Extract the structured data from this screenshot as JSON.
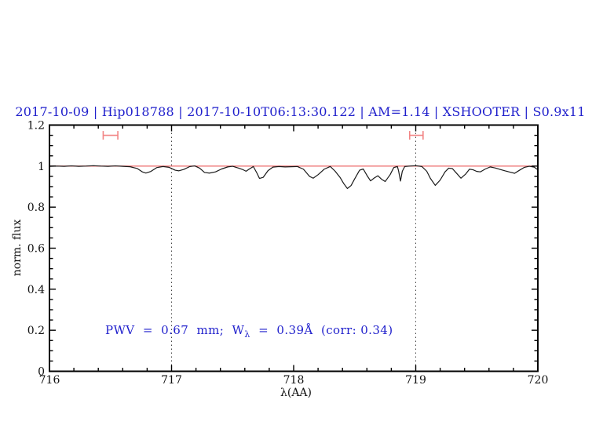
{
  "title": {
    "text": "2017-10-09 | Hip018788 | 2017-10-10T06:13:30.122 | AM=1.14 | XSHOOTER | S0.9x11",
    "color": "#1f1fcc"
  },
  "annotation": {
    "prefix": "PWV  =  0.67  mm;  W",
    "sub": "λ",
    "suffix": "  =  0.39Å  (corr: 0.34)",
    "color": "#1f1fcc"
  },
  "chart_data": {
    "type": "line",
    "title": "2017-10-09 | Hip018788 | 2017-10-10T06:13:30.122 | AM=1.14 | XSHOOTER | S0.9x11",
    "xlabel": "λ(AA)",
    "ylabel": "norm. flux",
    "xlim": [
      716,
      720
    ],
    "ylim": [
      0,
      1.2
    ],
    "grid": false,
    "x_major_ticks": [
      716,
      717,
      718,
      719,
      720
    ],
    "x_tick_labels": [
      "716",
      "717",
      "718",
      "719",
      "720"
    ],
    "x_minor_step": 0.2,
    "y_major_ticks": [
      0,
      0.2,
      0.4,
      0.6,
      0.8,
      1,
      1.2
    ],
    "y_tick_labels": [
      "0",
      "0.2",
      "0.4",
      "0.6",
      "0.8",
      "1",
      "1.2"
    ],
    "y_minor_step": 0.05,
    "dotted_vlines": [
      717,
      719
    ],
    "continuum": {
      "y": 1.0,
      "color": "#ee7676"
    },
    "error_bars": [
      {
        "x1": 716.44,
        "x2": 716.56,
        "y": 1.15
      },
      {
        "x1": 718.95,
        "x2": 719.06,
        "y": 1.15
      }
    ],
    "error_bar_color": "#f28585",
    "line_color": "#1a1a1a",
    "series": [
      {
        "name": "spectrum",
        "x": [
          716.0,
          716.06,
          716.12,
          716.18,
          716.24,
          716.3,
          716.36,
          716.42,
          716.48,
          716.54,
          716.6,
          716.66,
          716.72,
          716.76,
          716.79,
          716.83,
          716.88,
          716.93,
          716.98,
          717.03,
          717.06,
          717.1,
          717.15,
          717.19,
          717.23,
          717.27,
          717.31,
          717.36,
          717.41,
          717.46,
          717.5,
          717.55,
          717.58,
          717.61,
          717.64,
          717.67,
          717.7,
          717.72,
          717.75,
          717.79,
          717.83,
          717.88,
          717.93,
          717.98,
          718.03,
          718.08,
          718.13,
          718.16,
          718.2,
          718.25,
          718.3,
          718.34,
          718.38,
          718.41,
          718.44,
          718.47,
          718.5,
          718.54,
          718.57,
          718.6,
          718.63,
          718.66,
          718.69,
          718.72,
          718.75,
          718.79,
          718.82,
          718.85,
          718.86,
          718.875,
          718.89,
          718.91,
          718.95,
          719.0,
          719.05,
          719.09,
          719.12,
          719.16,
          719.2,
          719.24,
          719.27,
          719.3,
          719.33,
          719.37,
          719.41,
          719.44,
          719.47,
          719.5,
          719.53,
          719.57,
          719.61,
          719.65,
          719.69,
          719.73,
          719.77,
          719.81,
          719.85,
          719.89,
          719.93,
          719.97,
          720.0
        ],
        "y": [
          0.999,
          1.0,
          0.999,
          1.001,
          0.999,
          1.0,
          1.002,
          1.0,
          0.999,
          1.001,
          0.999,
          0.997,
          0.988,
          0.972,
          0.966,
          0.974,
          0.993,
          0.998,
          0.994,
          0.98,
          0.977,
          0.984,
          0.998,
          1.001,
          0.99,
          0.969,
          0.966,
          0.972,
          0.986,
          0.996,
          0.999,
          0.99,
          0.984,
          0.975,
          0.987,
          0.998,
          0.965,
          0.94,
          0.945,
          0.978,
          0.995,
          0.998,
          0.996,
          0.997,
          0.998,
          0.985,
          0.95,
          0.941,
          0.958,
          0.985,
          0.998,
          0.975,
          0.945,
          0.915,
          0.891,
          0.905,
          0.938,
          0.98,
          0.986,
          0.955,
          0.928,
          0.942,
          0.953,
          0.936,
          0.925,
          0.958,
          0.993,
          0.998,
          0.975,
          0.927,
          0.975,
          0.998,
          1.0,
          1.002,
          0.998,
          0.975,
          0.94,
          0.906,
          0.932,
          0.972,
          0.99,
          0.988,
          0.968,
          0.941,
          0.962,
          0.985,
          0.982,
          0.974,
          0.972,
          0.986,
          0.996,
          0.991,
          0.984,
          0.977,
          0.971,
          0.965,
          0.98,
          0.994,
          0.999,
          0.995,
          0.982
        ]
      }
    ]
  }
}
